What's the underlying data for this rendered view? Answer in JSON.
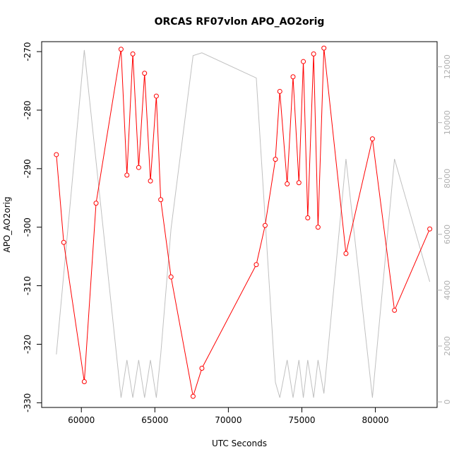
{
  "chart_data": {
    "type": "line",
    "title": "ORCAS RF07vlon APO_AO2orig",
    "xlabel": "UTC Seconds",
    "ylabel": "APO_AO2orig",
    "xlim": [
      57300,
      84200
    ],
    "ylim": [
      -330.8,
      -268.3
    ],
    "y2lim": [
      -200,
      12900
    ],
    "x_ticks": [
      60000,
      65000,
      70000,
      75000,
      80000
    ],
    "y_ticks": [
      -330,
      -320,
      -310,
      -300,
      -290,
      -280,
      -270
    ],
    "y2_ticks": [
      0,
      2000,
      4000,
      6000,
      8000,
      10000,
      12000
    ],
    "grid": false,
    "colors": {
      "primary": "#ff0000",
      "secondary": "#c0c0c0",
      "axis": "#000000",
      "right_axis": "#b0b0b0"
    },
    "series": [
      {
        "axis": "left",
        "x": [
          58300,
          58800,
          60200,
          61000,
          62700,
          63100,
          63500,
          63900,
          64300,
          64700,
          65100,
          65400,
          66100,
          67600,
          68200,
          71900,
          72500,
          73200,
          73500,
          74000,
          74400,
          74800,
          75100,
          75400,
          75800,
          76100,
          76500,
          78000,
          79800,
          81300,
          83700
        ],
        "y": [
          -287.6,
          -302.6,
          -326.4,
          -295.9,
          -269.6,
          -291.1,
          -270.4,
          -289.8,
          -273.7,
          -292.1,
          -277.6,
          -295.3,
          -308.5,
          -328.9,
          -324.1,
          -306.4,
          -299.7,
          -288.4,
          -276.8,
          -292.6,
          -274.3,
          -292.4,
          -271.7,
          -298.4,
          -270.4,
          -300.0,
          -269.4,
          -304.5,
          -284.9,
          -314.2,
          -300.3
        ]
      },
      {
        "axis": "right",
        "x": [
          58300,
          60200,
          62700,
          63100,
          63500,
          63900,
          64300,
          64700,
          65100,
          65400,
          66100,
          67600,
          68200,
          71900,
          73200,
          73500,
          74000,
          74400,
          74800,
          75100,
          75400,
          75800,
          76100,
          76500,
          78000,
          79800,
          81300,
          83700
        ],
        "y": [
          1700,
          12600,
          150,
          1500,
          150,
          1500,
          150,
          1500,
          150,
          1700,
          6200,
          12400,
          12500,
          11600,
          700,
          150,
          1500,
          150,
          1500,
          150,
          1500,
          150,
          1500,
          300,
          8700,
          150,
          8700,
          4300
        ]
      }
    ]
  }
}
